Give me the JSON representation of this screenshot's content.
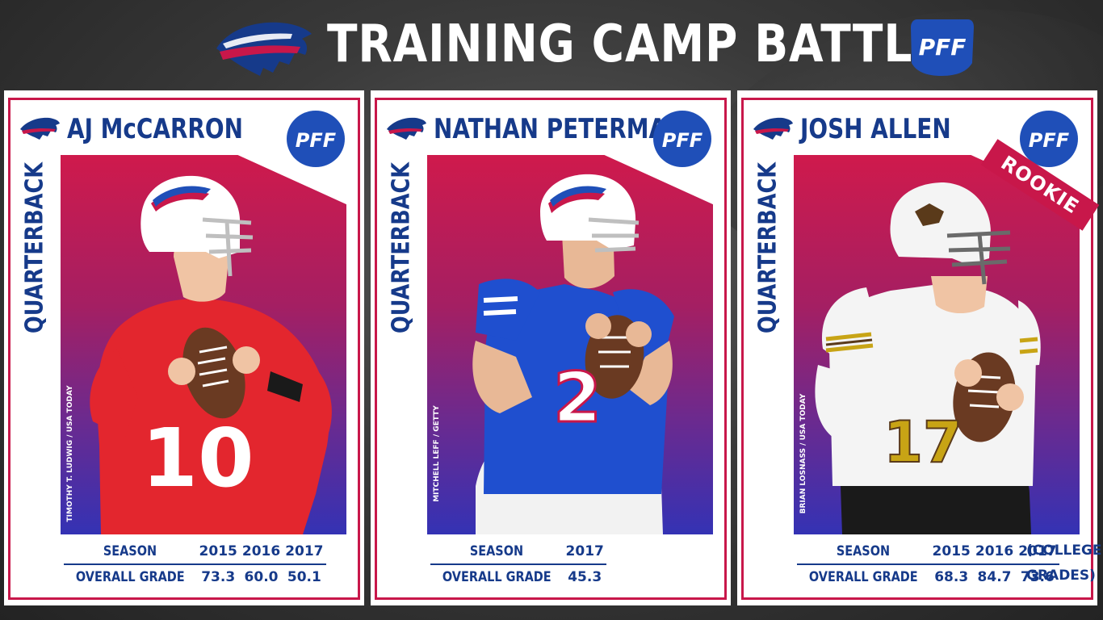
{
  "header": {
    "title": "TRAINING CAMP BATTLE",
    "logo_icon": "bills-buffalo-logo-icon",
    "pff_icon": "pff-logo-icon"
  },
  "colors": {
    "navy": "#163a8a",
    "red": "#c8174a",
    "gradient_top": "#cf1a4c",
    "gradient_bottom": "#3432b4"
  },
  "cards": [
    {
      "name": "AJ McCARRON",
      "position": "QUARTERBACK",
      "credit": "TIMOTHY T. LUDWIG / USA TODAY",
      "jersey": "10",
      "rookie": "",
      "stats": {
        "label_season": "SEASON",
        "label_grade": "OVERALL GRADE",
        "seasons": [
          "2015",
          "2016",
          "2017"
        ],
        "grades": [
          "73.3",
          "60.0",
          "50.1"
        ]
      },
      "note_line1": "",
      "note_line2": ""
    },
    {
      "name": "NATHAN PETERMAN",
      "position": "QUARTERBACK",
      "credit": "MITCHELL LEFF / GETTY",
      "jersey": "2",
      "rookie": "",
      "stats": {
        "label_season": "SEASON",
        "label_grade": "OVERALL GRADE",
        "seasons": [
          "2017"
        ],
        "grades": [
          "45.3"
        ]
      },
      "note_line1": "",
      "note_line2": ""
    },
    {
      "name": "JOSH ALLEN",
      "position": "QUARTERBACK",
      "credit": "BRIAN LOSNASS / USA TODAY",
      "jersey": "17",
      "rookie": "ROOKIE",
      "stats": {
        "label_season": "SEASON",
        "label_grade": "OVERALL GRADE",
        "seasons": [
          "2015",
          "2016",
          "2017"
        ],
        "grades": [
          "68.3",
          "84.7",
          "73.6"
        ]
      },
      "note_line1": "(COLLEGE",
      "note_line2": "GRADES)"
    }
  ]
}
